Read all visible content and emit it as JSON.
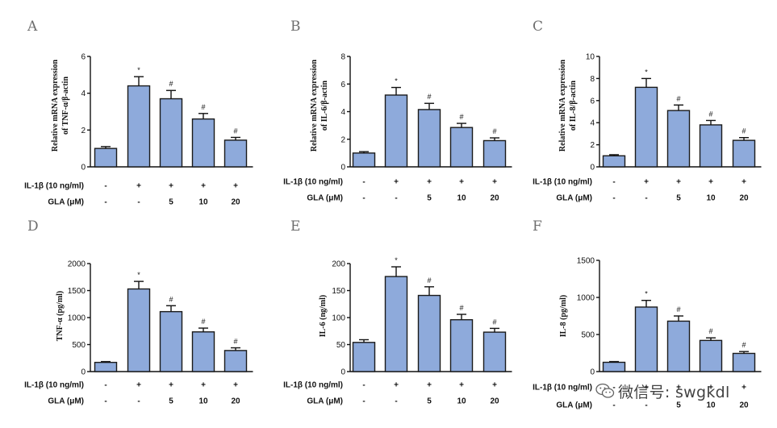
{
  "watermark": {
    "text": "微信号: swgkdl",
    "icon": "wechat-icon"
  },
  "bar_color": "#8eaadb",
  "chart_data": [
    {
      "panel": "A",
      "type": "bar",
      "ylabel": [
        "Relative mRNA expression",
        "of TNF-α/β-actin"
      ],
      "ylim": [
        0,
        6
      ],
      "yticks": [
        0,
        2,
        4,
        6
      ],
      "values": [
        1.0,
        4.4,
        3.7,
        2.6,
        1.45
      ],
      "errors": [
        0.1,
        0.5,
        0.45,
        0.3,
        0.15
      ],
      "markers": [
        "",
        "*",
        "#",
        "#",
        "#"
      ],
      "rows": [
        {
          "label": "IL-1β (10 ng/ml)",
          "cells": [
            "-",
            "+",
            "+",
            "+",
            "+"
          ]
        },
        {
          "label": "GLA (μM)",
          "cells": [
            "-",
            "-",
            "5",
            "10",
            "20"
          ]
        }
      ]
    },
    {
      "panel": "B",
      "type": "bar",
      "ylabel": [
        "Relative mRNA expression",
        "of IL-6/β-actin"
      ],
      "ylim": [
        0,
        8
      ],
      "yticks": [
        0,
        2,
        4,
        6,
        8
      ],
      "values": [
        1.0,
        5.2,
        4.15,
        2.85,
        1.9
      ],
      "errors": [
        0.1,
        0.55,
        0.45,
        0.3,
        0.2
      ],
      "markers": [
        "",
        "*",
        "#",
        "#",
        "#"
      ],
      "rows": [
        {
          "label": "IL-1β (10 ng/ml)",
          "cells": [
            "-",
            "+",
            "+",
            "+",
            "+"
          ]
        },
        {
          "label": "GLA (μM)",
          "cells": [
            "-",
            "-",
            "5",
            "10",
            "20"
          ]
        }
      ]
    },
    {
      "panel": "C",
      "type": "bar",
      "ylabel": [
        "Relative mRNA expression",
        "of IL-8/β-actin"
      ],
      "ylim": [
        0,
        10
      ],
      "yticks": [
        0,
        2,
        4,
        6,
        8,
        10
      ],
      "values": [
        1.0,
        7.2,
        5.1,
        3.8,
        2.4
      ],
      "errors": [
        0.1,
        0.8,
        0.5,
        0.4,
        0.25
      ],
      "markers": [
        "",
        "*",
        "#",
        "#",
        "#"
      ],
      "rows": [
        {
          "label": "IL-1β (10 ng/ml)",
          "cells": [
            "-",
            "+",
            "+",
            "+",
            "+"
          ]
        },
        {
          "label": "GLA (μM)",
          "cells": [
            "-",
            "-",
            "5",
            "10",
            "20"
          ]
        }
      ]
    },
    {
      "panel": "D",
      "type": "bar",
      "ylabel": [
        "TNF-α (pg/ml)"
      ],
      "ylim": [
        0,
        2000
      ],
      "yticks": [
        0,
        500,
        1000,
        1500,
        2000
      ],
      "values": [
        170,
        1530,
        1110,
        735,
        390
      ],
      "errors": [
        15,
        140,
        110,
        70,
        50
      ],
      "markers": [
        "",
        "*",
        "#",
        "#",
        "#"
      ],
      "rows": [
        {
          "label": "IL-1β (10 ng/ml)",
          "cells": [
            "-",
            "+",
            "+",
            "+",
            "+"
          ]
        },
        {
          "label": "GLA (μM)",
          "cells": [
            "-",
            "-",
            "5",
            "10",
            "20"
          ]
        }
      ]
    },
    {
      "panel": "E",
      "type": "bar",
      "ylabel": [
        "IL-6 (ng/ml)"
      ],
      "ylim": [
        0,
        200
      ],
      "yticks": [
        0,
        50,
        100,
        150,
        200
      ],
      "values": [
        54,
        176,
        141,
        96,
        73
      ],
      "errors": [
        5,
        18,
        16,
        10,
        7
      ],
      "markers": [
        "",
        "*",
        "#",
        "#",
        "#"
      ],
      "rows": [
        {
          "label": "IL-1β (10 ng/ml)",
          "cells": [
            "-",
            "+",
            "+",
            "+",
            "+"
          ]
        },
        {
          "label": "GLA (μM)",
          "cells": [
            "-",
            "-",
            "5",
            "10",
            "20"
          ]
        }
      ]
    },
    {
      "panel": "F",
      "type": "bar",
      "ylabel": [
        "IL-8 (pg/ml)"
      ],
      "ylim": [
        0,
        1500
      ],
      "yticks": [
        0,
        500,
        1000,
        1500
      ],
      "values": [
        125,
        870,
        680,
        420,
        245
      ],
      "errors": [
        10,
        90,
        70,
        35,
        25
      ],
      "markers": [
        "",
        "*",
        "#",
        "#",
        "#"
      ],
      "rows": [
        {
          "label": "IL-1β (10 ng/ml)",
          "cells": [
            "-",
            "+",
            "+",
            "+",
            "+"
          ]
        },
        {
          "label": "GLA (μM)",
          "cells": [
            "-",
            "-",
            "5",
            "10",
            "20"
          ]
        }
      ]
    }
  ]
}
